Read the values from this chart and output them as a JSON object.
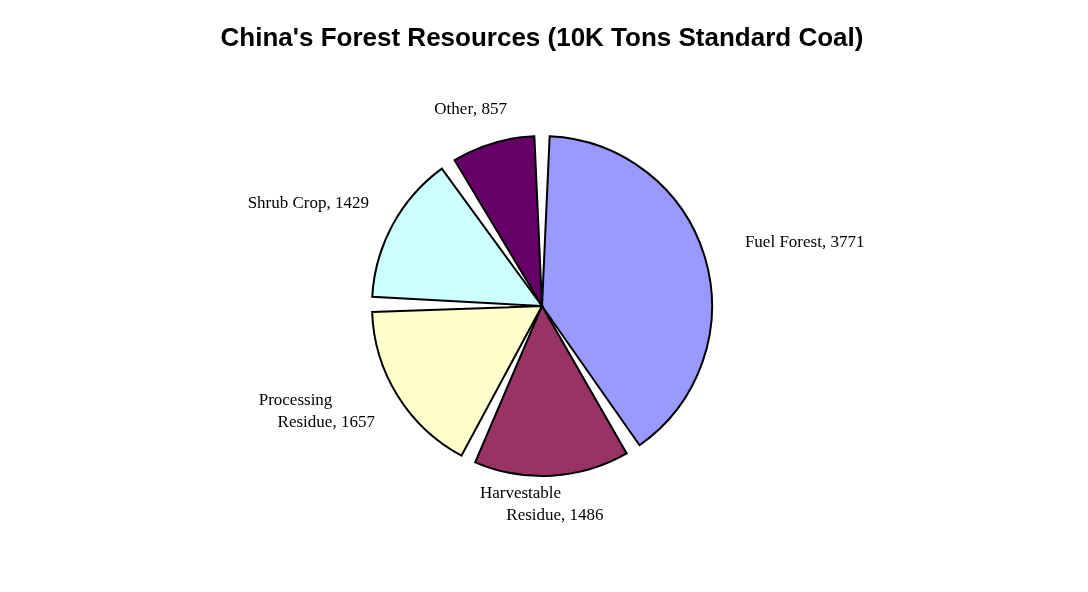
{
  "chart_data": {
    "type": "pie",
    "title": "China's Forest Resources (10K Tons Standard Coal)",
    "categories": [
      "Fuel Forest",
      "Harvestable Residue",
      "Processing Residue",
      "Shrub Crop",
      "Other"
    ],
    "values": [
      3771,
      1486,
      1657,
      1429,
      857
    ],
    "colors": [
      "#9999ff",
      "#993366",
      "#ffffcc",
      "#ccffff",
      "#660066"
    ],
    "value_labels": [
      ", 3771",
      ", 1486",
      ", 1657",
      ", 1429",
      ", 857"
    ],
    "legend": false
  }
}
